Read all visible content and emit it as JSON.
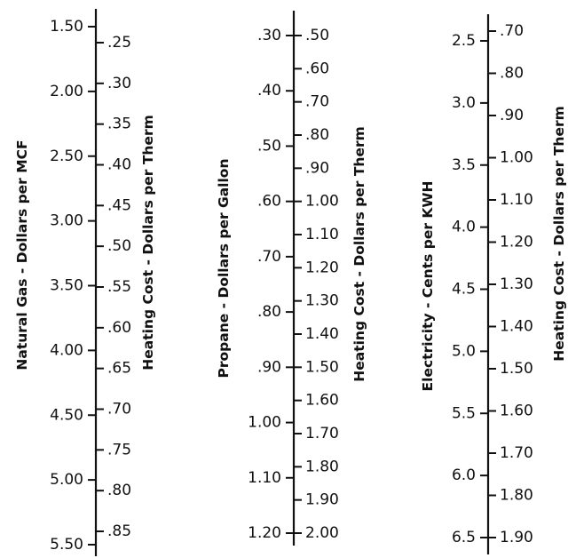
{
  "chart_data": {
    "type": "nomogram",
    "scales": [
      {
        "left_axis_label": "Natural Gas - Dollars per MCF",
        "left_ticks": [
          "1.50",
          "2.00",
          "2.50",
          "3.00",
          "3.50",
          "4.00",
          "4.50",
          "5.00",
          "5.50"
        ],
        "left_values": [
          1.5,
          2.0,
          2.5,
          3.0,
          3.5,
          4.0,
          4.5,
          5.0,
          5.5
        ],
        "right_axis_label": "Heating Cost - Dollars per Therm",
        "right_ticks": [
          ".25",
          ".30",
          ".35",
          ".40",
          ".45",
          ".50",
          ".55",
          ".60",
          ".65",
          ".70",
          ".75",
          ".80",
          ".85"
        ],
        "right_values": [
          0.25,
          0.3,
          0.35,
          0.4,
          0.45,
          0.5,
          0.55,
          0.6,
          0.65,
          0.7,
          0.75,
          0.8,
          0.85
        ]
      },
      {
        "left_axis_label": "Propane - Dollars per Gallon",
        "left_ticks": [
          ".30",
          ".40",
          ".50",
          ".60",
          ".70",
          ".80",
          ".90",
          "1.00",
          "1.10",
          "1.20"
        ],
        "left_values": [
          0.3,
          0.4,
          0.5,
          0.6,
          0.7,
          0.8,
          0.9,
          1.0,
          1.1,
          1.2
        ],
        "right_axis_label": "Heating Cost - Dollars per Therm",
        "right_ticks": [
          ".50",
          ".60",
          ".70",
          ".80",
          ".90",
          "1.00",
          "1.10",
          "1.20",
          "1.30",
          "1.40",
          "1.50",
          "1.60",
          "1.70",
          "1.80",
          "1.90",
          "2.00"
        ],
        "right_values": [
          0.5,
          0.6,
          0.7,
          0.8,
          0.9,
          1.0,
          1.1,
          1.2,
          1.3,
          1.4,
          1.5,
          1.6,
          1.7,
          1.8,
          1.9,
          2.0
        ]
      },
      {
        "left_axis_label": "Electricity - Cents per KWH",
        "left_ticks": [
          "2.5",
          "3.0",
          "3.5",
          "4.0",
          "4.5",
          "5.0",
          "5.5",
          "6.0",
          "6.5"
        ],
        "left_values": [
          2.5,
          3.0,
          3.5,
          4.0,
          4.5,
          5.0,
          5.5,
          6.0,
          6.5
        ],
        "right_axis_label": "Heating Cost - Dollars per Therm",
        "right_ticks": [
          ".70",
          ".80",
          ".90",
          "1.00",
          "1.10",
          "1.20",
          "1.30",
          "1.40",
          "1.50",
          "1.60",
          "1.70",
          "1.80",
          "1.90"
        ],
        "right_values": [
          0.7,
          0.8,
          0.9,
          1.0,
          1.1,
          1.2,
          1.3,
          1.4,
          1.5,
          1.6,
          1.7,
          1.8,
          1.9
        ]
      }
    ]
  }
}
